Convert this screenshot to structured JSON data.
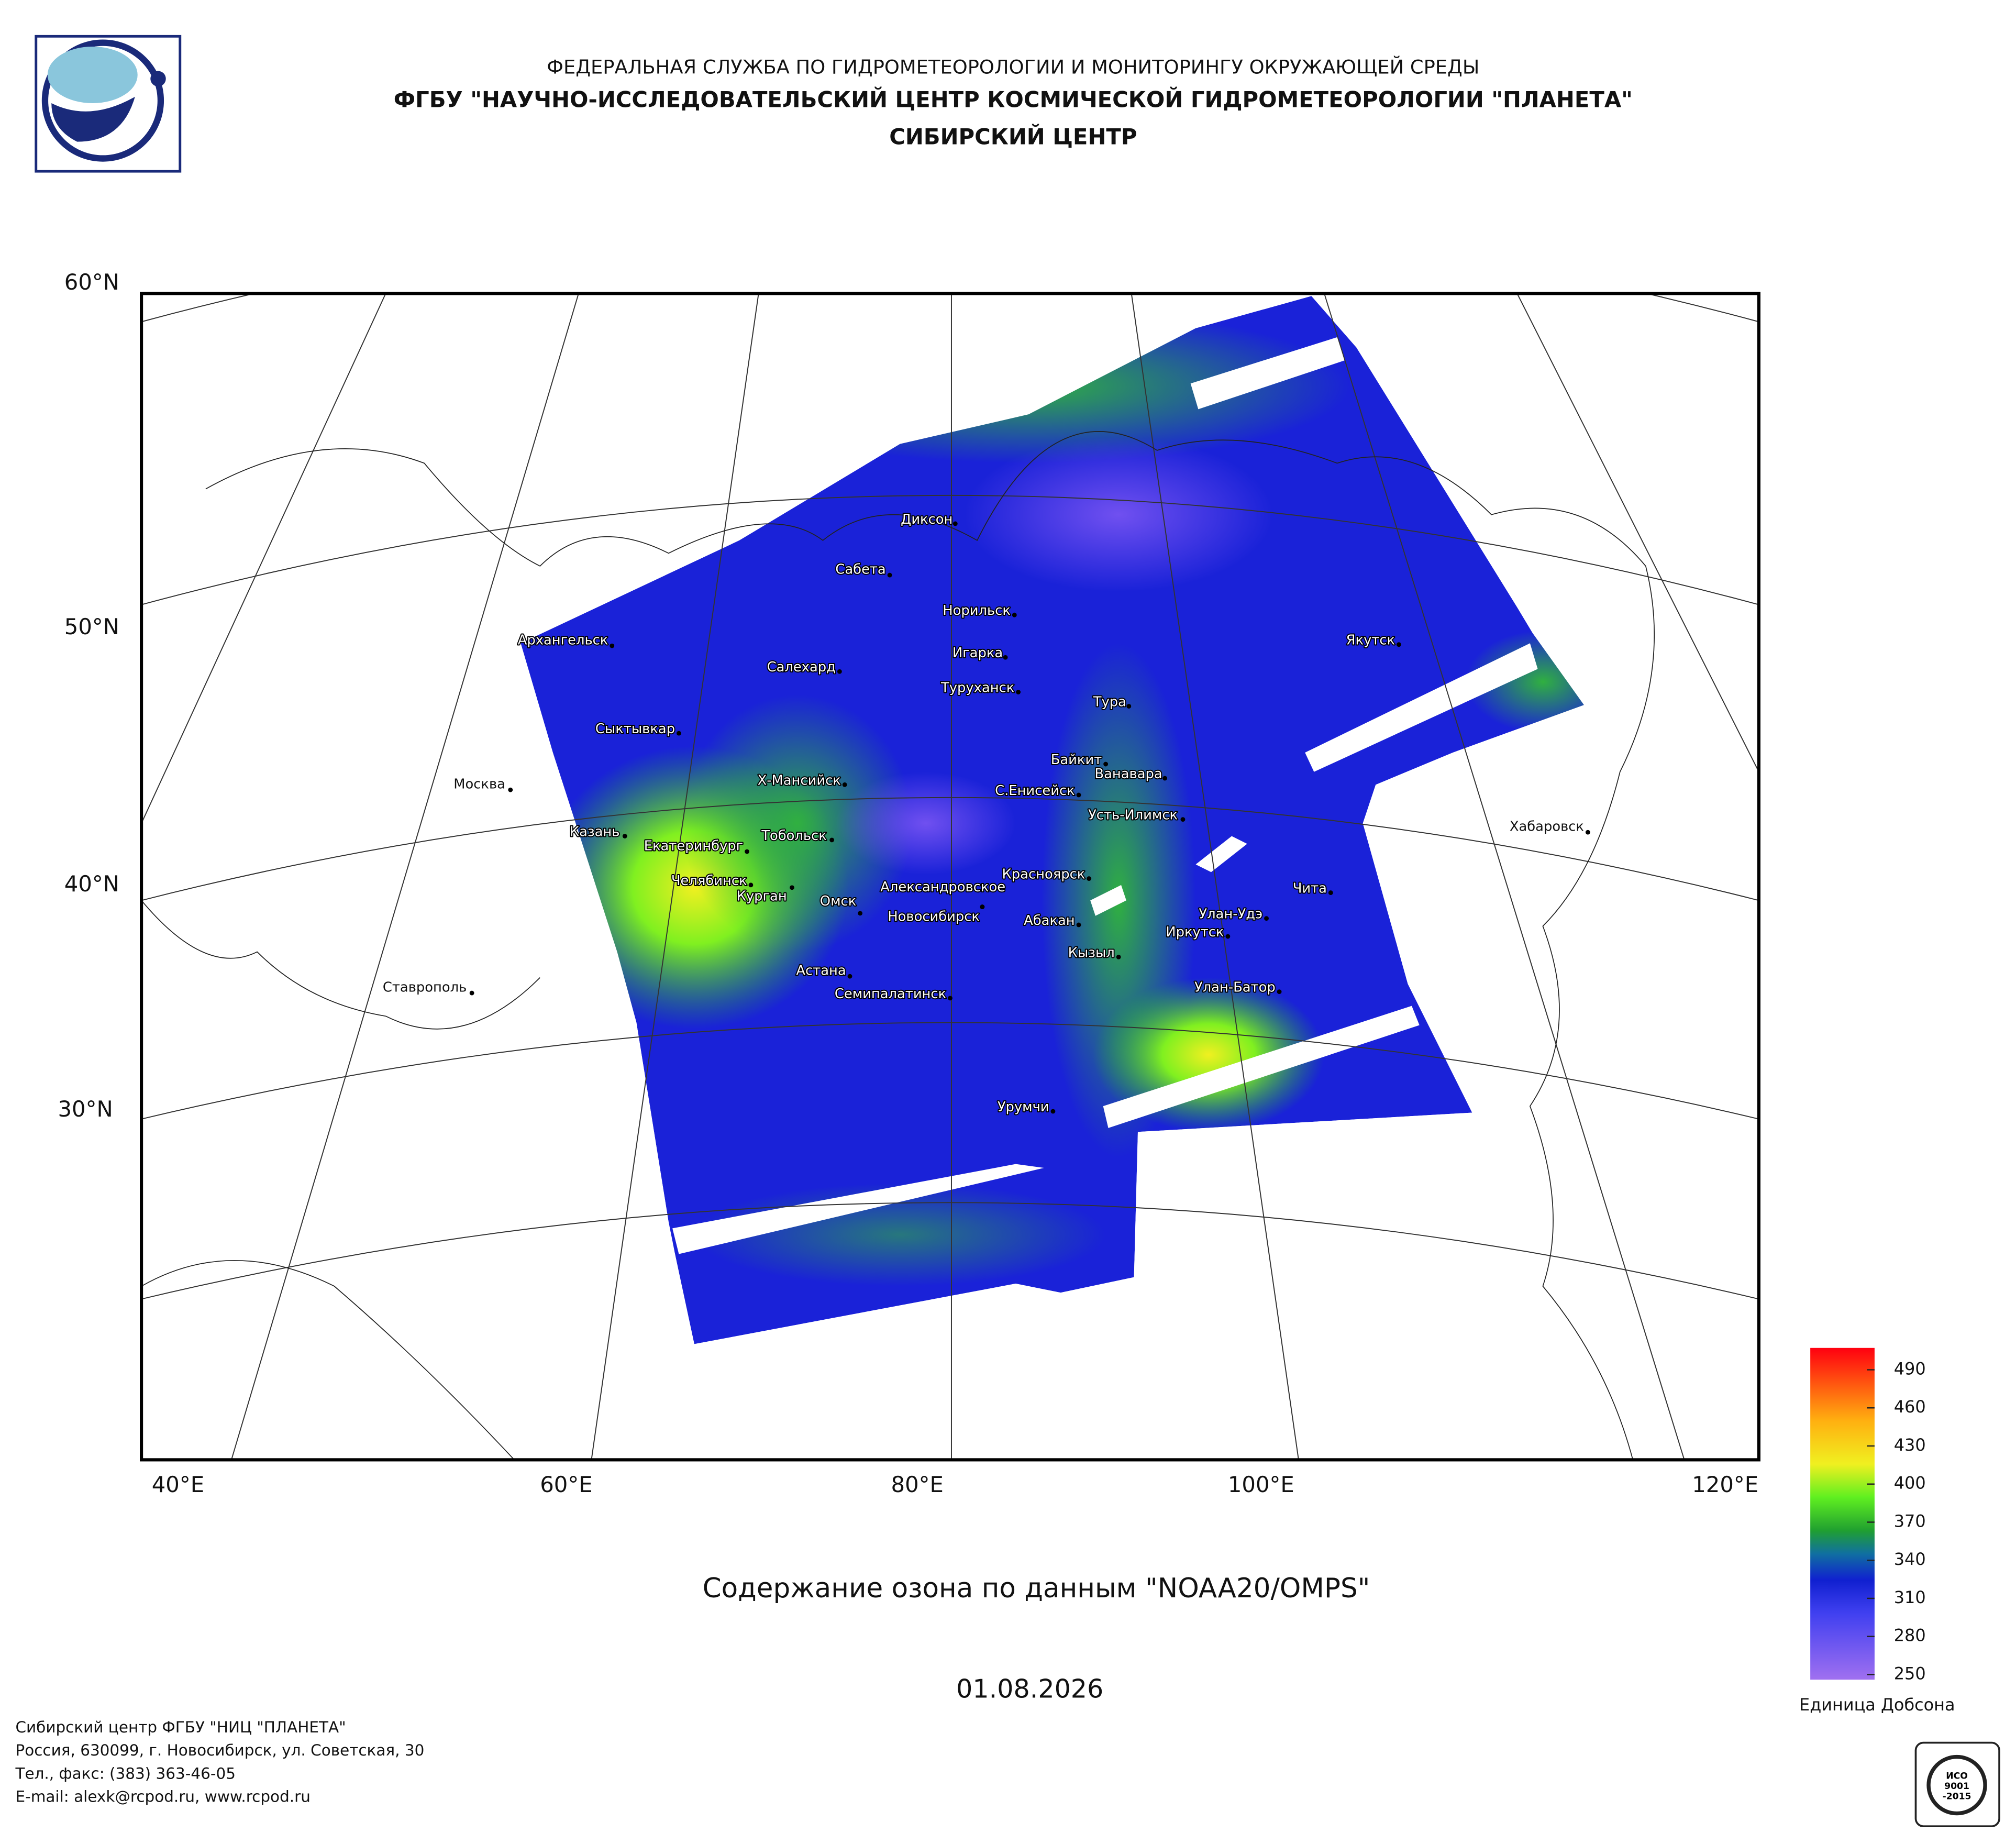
{
  "header": {
    "agency": "ФЕДЕРАЛЬНАЯ СЛУЖБА ПО ГИДРОМЕТЕОРОЛОГИИ И МОНИТОРИНГУ ОКРУЖАЮЩЕЙ СРЕДЫ",
    "institute": "ФГБУ \"НАУЧНО-ИССЛЕДОВАТЕЛЬСКИЙ ЦЕНТР КОСМИЧЕСКОЙ ГИДРОМЕТЕОРОЛОГИИ \"ПЛАНЕТА\"",
    "center": "СИБИРСКИЙ ЦЕНТР"
  },
  "map": {
    "latitude_labels": [
      "60°N",
      "50°N",
      "40°N",
      "30°N"
    ],
    "longitude_labels": [
      "40°E",
      "60°E",
      "80°E",
      "100°E",
      "120°E"
    ],
    "cities": [
      "Диксон",
      "Сабета",
      "Норильск",
      "Архангельск",
      "Якутск",
      "Игарка",
      "Салехард",
      "Туруханск",
      "Тура",
      "Сыктывкар",
      "Байкит",
      "Ванавара",
      "Х-Мансийск",
      "Москва",
      "С.Енисейск",
      "Усть-Илимск",
      "Хабаровск",
      "Казань",
      "Тобольск",
      "Екатеринбург",
      "Чита",
      "Красноярск",
      "Челябинск",
      "Курган",
      "Александровское",
      "Омск",
      "Новосибирск",
      "Улан-Удэ",
      "Абакан",
      "Иркутск",
      "Кызыл",
      "Астана",
      "Улан-Батор",
      "Ставрополь",
      "Семипалатинск",
      "Урумчи"
    ]
  },
  "caption": "Содержание озона по данным \"NOAA20/OMPS\"",
  "date": "01.08.2026",
  "legend": {
    "ticks": [
      490,
      460,
      430,
      400,
      370,
      340,
      310,
      280,
      250
    ],
    "unit": "Единица Добсона"
  },
  "footer": [
    "Сибирский центр ФГБУ \"НИЦ \"ПЛАНЕТА\"",
    "Россия, 630099, г. Новосибирск, ул. Советская, 30",
    "Тел., факс: (383) 363-46-05",
    "E-mail: alexk@rcpod.ru, www.rcpod.ru"
  ],
  "badge": [
    "ИСО",
    "9001",
    "-2015"
  ]
}
